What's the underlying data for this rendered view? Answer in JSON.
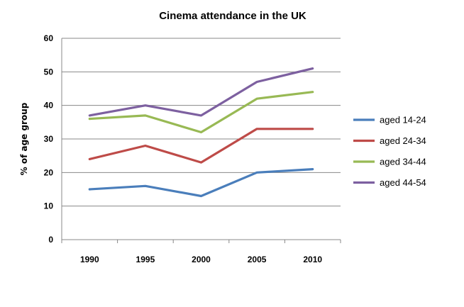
{
  "chart_data": {
    "type": "line",
    "title": "Cinema attendance in the UK",
    "xlabel": "",
    "ylabel": "% of age group",
    "x": [
      "1990",
      "1995",
      "2000",
      "2005",
      "2010"
    ],
    "ylim": [
      0,
      60
    ],
    "yticks": [
      "0",
      "10",
      "20",
      "30",
      "40",
      "50",
      "60"
    ],
    "grid": true,
    "legend": "right",
    "series": [
      {
        "name": "aged 14-24",
        "color": "#4a7ebb",
        "values": [
          15,
          16,
          13,
          20,
          21
        ]
      },
      {
        "name": "aged 24-34",
        "color": "#be4b48",
        "values": [
          24,
          28,
          23,
          33,
          33
        ]
      },
      {
        "name": "aged 34-44",
        "color": "#98b954",
        "values": [
          36,
          37,
          32,
          42,
          44
        ]
      },
      {
        "name": "aged 44-54",
        "color": "#7d60a0",
        "values": [
          37,
          40,
          37,
          47,
          51
        ]
      }
    ]
  }
}
